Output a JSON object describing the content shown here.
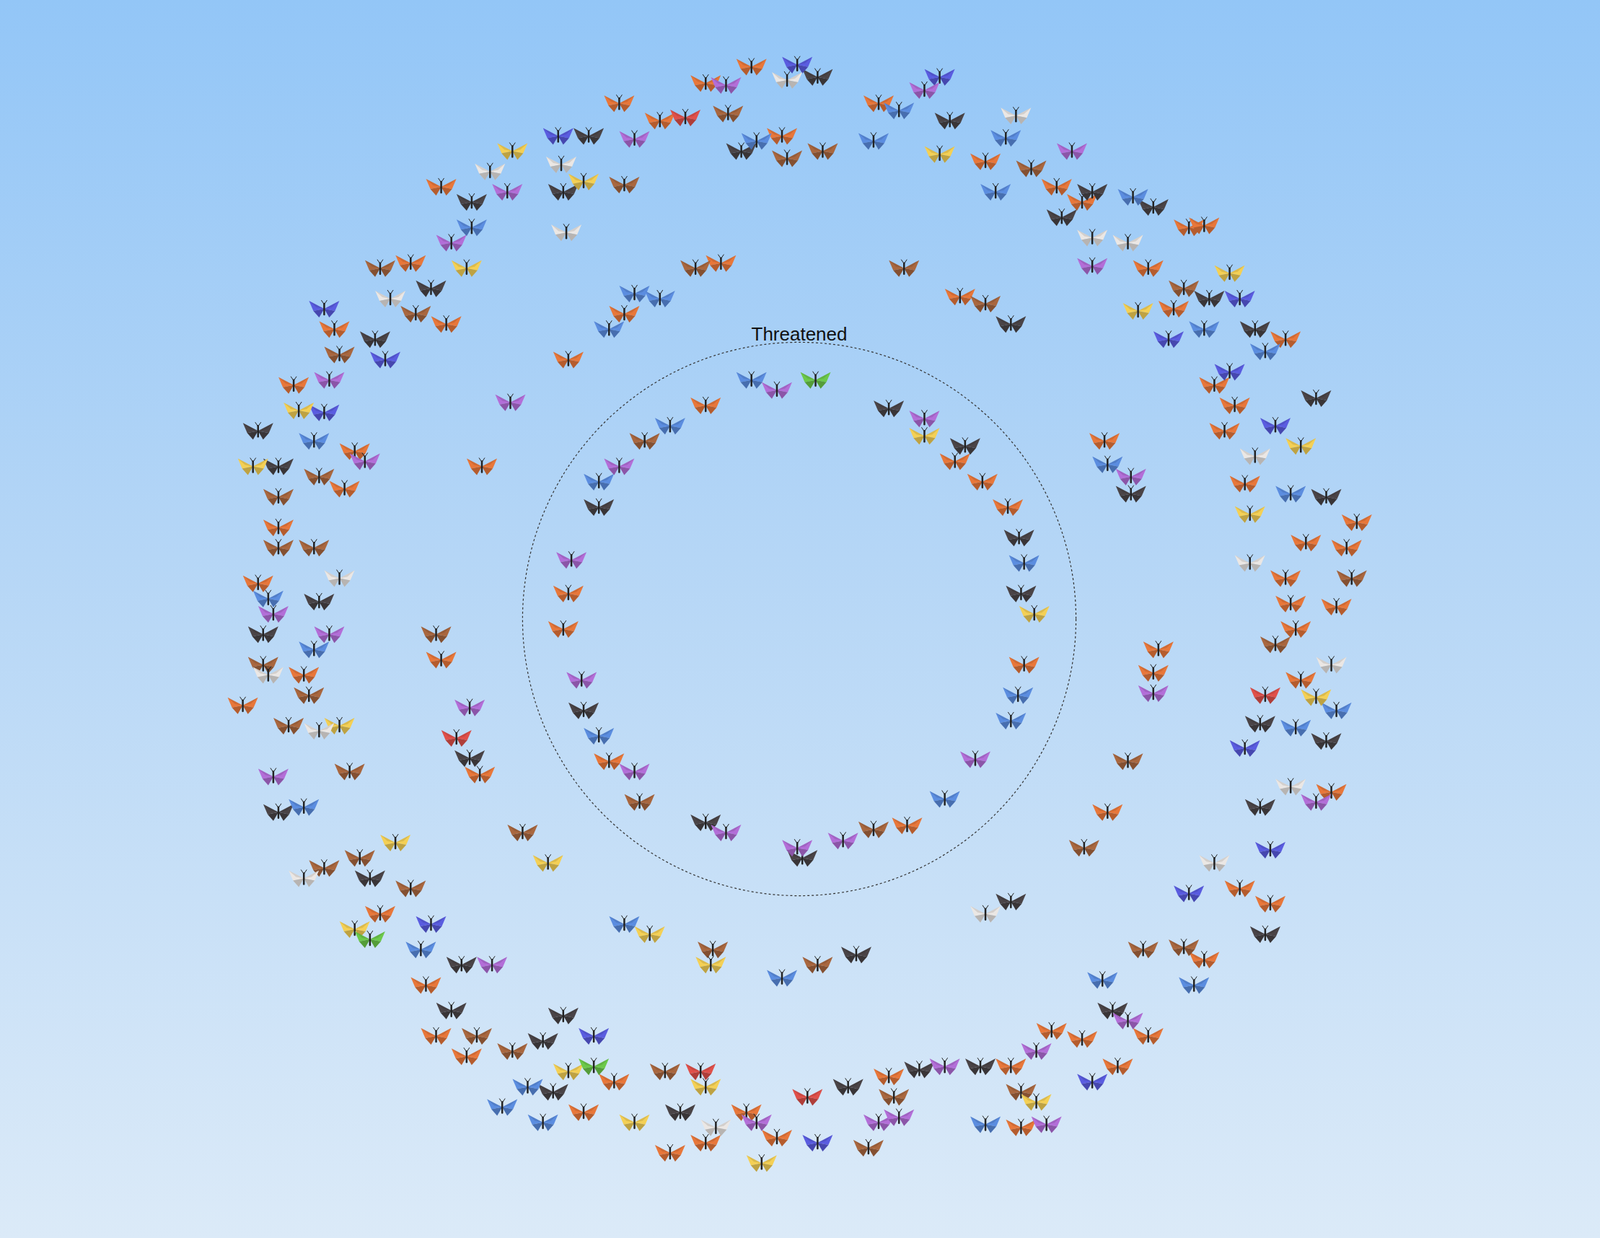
{
  "chart_data": {
    "type": "scatter",
    "marker": "butterfly",
    "tick_labels": false,
    "grid": false,
    "xlim": [
      -780,
      780
    ],
    "ylim": [
      -603,
      603
    ],
    "rings": [
      {
        "label": "Threatened",
        "radius": 272
      }
    ],
    "series": [
      {
        "color": "#e8773a",
        "x": [
          -92,
          153,
          180,
          205,
          221,
          106,
          -187,
          -232,
          -227,
          -77,
          -172,
          -227,
          -312,
          -352,
          -314,
          158,
          300,
          353,
          348,
          303,
          -47,
          -92,
          -137,
          -177,
          -352,
          -17,
          78,
          183,
          253,
          278,
          383,
          398,
          343,
          368,
          478,
          408,
          428,
          418,
          438,
          548,
          498,
          538,
          478,
          483,
          528,
          488,
          493,
          523,
          433,
          463,
          398,
          343,
          248,
          278,
          313,
          208,
          88,
          218,
          -22,
          -52,
          -127,
          -92,
          -182,
          -212,
          -327,
          -357,
          -367,
          -412,
          -547,
          -487,
          -532,
          -512,
          -497,
          -447,
          -437,
          -457,
          -347,
          -382
        ],
        "y": [
          210,
          155,
          135,
          110,
          -45,
          -203,
          -140,
          -10,
          25,
          350,
          300,
          255,
          150,
          -40,
          -153,
          317,
          175,
          -30,
          -53,
          -190,
          543,
          527,
          490,
          507,
          425,
          475,
          507,
          450,
          425,
          410,
          385,
          387,
          345,
          305,
          275,
          230,
          210,
          185,
          133,
          95,
          75,
          70,
          40,
          15,
          12,
          -10,
          -60,
          -170,
          -265,
          -280,
          -335,
          -410,
          -405,
          -413,
          -440,
          -440,
          -450,
          -500,
          -510,
          -485,
          -525,
          -515,
          -455,
          -485,
          -430,
          -410,
          -360,
          -290,
          -85,
          -55,
          35,
          90,
          230,
          128,
          165,
          285,
          290,
          350
        ]
      },
      {
        "color": "#a9673f",
        "x": [
          73,
          -157,
          -152,
          -102,
          -357,
          -272,
          -85,
          18,
          103,
          183,
          323,
          280,
          -70,
          -172,
          -12,
          23,
          228,
          378,
          543,
          468,
          338,
          378,
          218,
          93,
          68,
          -132,
          -282,
          -317,
          -382,
          -432,
          -467,
          -442,
          -502,
          -482,
          -527,
          -512,
          -477,
          -512,
          -472,
          -452,
          -377,
          -412
        ],
        "y": [
          -207,
          -180,
          175,
          345,
          -15,
          -210,
          -325,
          -340,
          345,
          310,
          -140,
          -225,
          497,
          427,
          453,
          460,
          443,
          325,
          40,
          -25,
          -325,
          -323,
          -465,
          -470,
          -520,
          -445,
          -425,
          -410,
          -265,
          -235,
          -245,
          -150,
          -105,
          -75,
          -45,
          70,
          70,
          120,
          140,
          260,
          300,
          345
        ]
      },
      {
        "color": "#4a4447",
        "x": [
          88,
          163,
          216,
          218,
          3,
          -92,
          -212,
          -197,
          -324,
          56,
          208,
          326,
          208,
          18,
          -207,
          -322,
          -232,
          -57,
          148,
          288,
          258,
          348,
          403,
          448,
          508,
          518,
          453,
          518,
          453,
          458,
          308,
          178,
          118,
          48,
          -117,
          -242,
          -232,
          -252,
          -342,
          -332,
          -422,
          -512,
          -527,
          -472,
          -532,
          -512,
          -417,
          -362
        ],
        "y": [
          207,
          170,
          80,
          25,
          -235,
          -200,
          -90,
          110,
          -137,
          -330,
          290,
          123,
          -278,
          533,
          475,
          410,
          420,
          460,
          490,
          420,
          395,
          405,
          315,
          285,
          217,
          120,
          -103,
          -120,
          -185,
          -310,
          -385,
          -440,
          -443,
          -460,
          -485,
          -465,
          -390,
          -415,
          -385,
          -340,
          -255,
          -190,
          -15,
          17,
          185,
          150,
          275,
          325
        ]
      },
      {
        "color": "#5b8de0",
        "x": [
          -47,
          221,
          215,
          208,
          143,
          -197,
          -197,
          -127,
          -162,
          -137,
          -187,
          -172,
          -17,
          303,
          -42,
          73,
          98,
          203,
          193,
          328,
          398,
          458,
          483,
          528,
          488,
          298,
          388,
          183,
          -252,
          -292,
          -267,
          -372,
          -487,
          -477,
          -522,
          -477,
          -322
        ],
        "y": [
          235,
          55,
          -75,
          -100,
          -177,
          -115,
          135,
          190,
          320,
          315,
          285,
          -300,
          -353,
          152,
          470,
          470,
          500,
          473,
          420,
          415,
          285,
          263,
          123,
          -90,
          -107,
          -355,
          -360,
          -497,
          -495,
          -480,
          -460,
          -325,
          -185,
          -30,
          20,
          175,
          385
        ]
      },
      {
        "color": "#5a5ce0",
        "x": [
          -2,
          -237,
          138,
          433,
          363,
          423,
          468,
          438,
          463,
          383,
          288,
          18,
          -202,
          -362,
          -467,
          -407,
          -467
        ],
        "y": [
          545,
          475,
          533,
          315,
          275,
          243,
          190,
          -127,
          -227,
          -270,
          -455,
          -515,
          -410,
          -300,
          203,
          255,
          305
        ]
      },
      {
        "color": "#b36ed8",
        "x": [
          -22,
          123,
          173,
          43,
          -2,
          -72,
          -162,
          -214,
          -224,
          -177,
          -284,
          -324,
          326,
          348,
          -72,
          -162,
          -287,
          123,
          268,
          288,
          508,
          323,
          233,
          143,
          243,
          78,
          98,
          -42,
          -302,
          -517,
          -462,
          -517,
          -462,
          -427,
          -342
        ],
        "y": [
          225,
          197,
          -138,
          -218,
          -225,
          -210,
          -150,
          -60,
          58,
          150,
          213,
          -87,
          140,
          -73,
          525,
          472,
          420,
          520,
          460,
          347,
          -180,
          -395,
          -425,
          -440,
          -497,
          -495,
          -490,
          -495,
          -340,
          -155,
          -15,
          5,
          235,
          155,
          370
        ]
      },
      {
        "color": "#f4d055",
        "x": [
          123,
          231,
          -247,
          -147,
          -87,
          -282,
          -212,
          138,
          423,
          333,
          493,
          443,
          508,
          233,
          -37,
          -92,
          -162,
          -227,
          -437,
          -397,
          -452,
          -537,
          -492,
          -327
        ],
        "y": [
          180,
          5,
          -240,
          -310,
          -340,
          460,
          430,
          457,
          340,
          303,
          170,
          103,
          -77,
          -475,
          -535,
          -460,
          -495,
          -445,
          -305,
          -220,
          -105,
          150,
          205,
          345
        ]
      },
      {
        "color": "#ebe7e4",
        "x": [
          -229,
          183,
          -12,
          -304,
          -234,
          213,
          288,
          323,
          448,
          443,
          523,
          483,
          408,
          -82,
          -487,
          -472,
          -522,
          -452,
          -402
        ],
        "y": [
          380,
          -290,
          530,
          440,
          447,
          495,
          375,
          370,
          160,
          55,
          -45,
          -165,
          -240,
          -500,
          -255,
          -110,
          -55,
          40,
          315
        ]
      },
      {
        "color": "#e0504a",
        "x": [
          -337,
          -112,
          458,
          8,
          -97
        ],
        "y": [
          -117,
          493,
          -75,
          -470,
          -445
        ]
      },
      {
        "color": "#6cc94a",
        "x": [
          16,
          -202,
          -422
        ],
        "y": [
          235,
          -440,
          -315
        ]
      }
    ]
  }
}
